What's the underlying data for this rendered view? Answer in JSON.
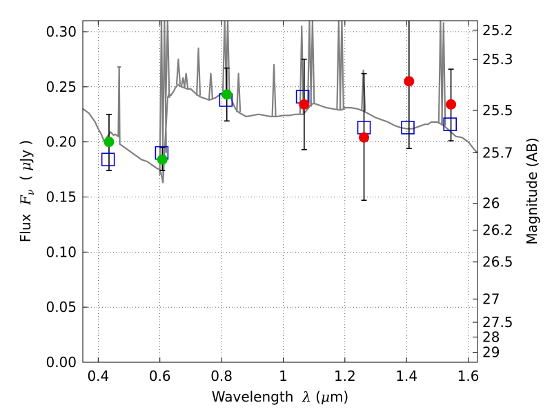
{
  "chart_data": {
    "type": "scatter",
    "xlabel": {
      "prefix": "Wavelength  ",
      "symbol": "λ",
      "unit_open": " (",
      "unit_mu": "μ",
      "unit_rest": "m)"
    },
    "ylabel": {
      "prefix": "Flux  ",
      "symbol": "F",
      "subscript": "ν",
      "unit_open": "  ( ",
      "unit_mu": "μ",
      "unit_rest": "Jy )"
    },
    "y2label": "Magnitude (AB)",
    "xlim": [
      0.35,
      1.63
    ],
    "ylim": [
      0.0,
      0.31
    ],
    "grid": true,
    "x_ticks": [
      0.4,
      0.6,
      0.8,
      1.0,
      1.2,
      1.4,
      1.6
    ],
    "x_tick_labels": [
      "0.4",
      "0.6",
      "0.8",
      "1",
      "1.2",
      "1.4",
      "1.6"
    ],
    "y_ticks": [
      0.0,
      0.05,
      0.1,
      0.15,
      0.2,
      0.25,
      0.3
    ],
    "y_tick_labels": [
      "0.00",
      "0.05",
      "0.10",
      "0.15",
      "0.20",
      "0.25",
      "0.30"
    ],
    "mag_ticks": [
      {
        "label": "25.2",
        "flux": 0.3013
      },
      {
        "label": "25.3",
        "flux": 0.2748
      },
      {
        "label": "25.5",
        "flux": 0.2286
      },
      {
        "label": "25.7",
        "flux": 0.1901
      },
      {
        "label": "26",
        "flux": 0.1442
      },
      {
        "label": "26.2",
        "flux": 0.1199
      },
      {
        "label": "26.5",
        "flux": 0.091
      },
      {
        "label": "27",
        "flux": 0.0574
      },
      {
        "label": "27.5",
        "flux": 0.0363
      },
      {
        "label": "28",
        "flux": 0.0229
      },
      {
        "label": "29",
        "flux": 0.0091
      }
    ],
    "colors": {
      "sed": "#808080",
      "model": "#0000cc",
      "green": "#00bb00",
      "red": "#ee0000",
      "errorbar": "#000000"
    },
    "sed": {
      "x": [
        0.35,
        0.36,
        0.37,
        0.38,
        0.39,
        0.4,
        0.41,
        0.42,
        0.43,
        0.44,
        0.45,
        0.455,
        0.465,
        0.468,
        0.47,
        0.48,
        0.49,
        0.5,
        0.51,
        0.52,
        0.53,
        0.54,
        0.55,
        0.56,
        0.57,
        0.58,
        0.59,
        0.6,
        0.605,
        0.61,
        0.615,
        0.62,
        0.625,
        0.63,
        0.635,
        0.64,
        0.645,
        0.65,
        0.655,
        0.66,
        0.67,
        0.68,
        0.69,
        0.7,
        0.72,
        0.73,
        0.74,
        0.75,
        0.76,
        0.78,
        0.8,
        0.81,
        0.815,
        0.82,
        0.83,
        0.84,
        0.85,
        0.86,
        0.88,
        0.9,
        0.92,
        0.94,
        0.96,
        0.98,
        1.0,
        1.02,
        1.04,
        1.06,
        1.065,
        1.08,
        1.09,
        1.1,
        1.12,
        1.14,
        1.16,
        1.18,
        1.19,
        1.2,
        1.22,
        1.24,
        1.26,
        1.28,
        1.3,
        1.32,
        1.34,
        1.36,
        1.38,
        1.4,
        1.42,
        1.44,
        1.46,
        1.47,
        1.48,
        1.5,
        1.52,
        1.54,
        1.56,
        1.58,
        1.6,
        1.62,
        1.63
      ],
      "y": [
        0.23,
        0.228,
        0.226,
        0.222,
        0.218,
        0.212,
        0.207,
        0.2,
        0.205,
        0.209,
        0.206,
        0.207,
        0.205,
        0.268,
        0.198,
        0.196,
        0.194,
        0.192,
        0.19,
        0.188,
        0.186,
        0.184,
        0.183,
        0.182,
        0.18,
        0.178,
        0.176,
        0.175,
        0.17,
        0.163,
        0.19,
        0.215,
        0.24,
        0.244,
        0.242,
        0.244,
        0.246,
        0.249,
        0.251,
        0.252,
        0.25,
        0.249,
        0.248,
        0.248,
        0.243,
        0.241,
        0.24,
        0.239,
        0.238,
        0.24,
        0.244,
        0.246,
        0.245,
        0.244,
        0.24,
        0.233,
        0.228,
        0.226,
        0.223,
        0.224,
        0.225,
        0.224,
        0.223,
        0.223,
        0.224,
        0.224,
        0.225,
        0.225,
        0.225,
        0.23,
        0.234,
        0.235,
        0.233,
        0.231,
        0.23,
        0.229,
        0.229,
        0.231,
        0.231,
        0.23,
        0.228,
        0.225,
        0.222,
        0.22,
        0.218,
        0.215,
        0.213,
        0.212,
        0.212,
        0.214,
        0.216,
        0.216,
        0.218,
        0.218,
        0.215,
        0.21,
        0.205,
        0.204,
        0.2,
        0.193,
        0.19
      ]
    },
    "emission_lines": [
      {
        "x": 0.468,
        "top": 0.268
      },
      {
        "x": 0.605,
        "top": 0.31
      },
      {
        "x": 0.615,
        "top": 0.31
      },
      {
        "x": 0.625,
        "top": 0.31
      },
      {
        "x": 0.66,
        "top": 0.275
      },
      {
        "x": 0.675,
        "top": 0.258
      },
      {
        "x": 0.685,
        "top": 0.262
      },
      {
        "x": 0.725,
        "top": 0.285
      },
      {
        "x": 0.765,
        "top": 0.262
      },
      {
        "x": 0.81,
        "top": 0.31
      },
      {
        "x": 0.82,
        "top": 0.31
      },
      {
        "x": 0.855,
        "top": 0.262
      },
      {
        "x": 0.97,
        "top": 0.27
      },
      {
        "x": 1.06,
        "top": 0.305
      },
      {
        "x": 1.085,
        "top": 0.31
      },
      {
        "x": 1.095,
        "top": 0.31
      },
      {
        "x": 1.18,
        "top": 0.31
      },
      {
        "x": 1.19,
        "top": 0.31
      },
      {
        "x": 1.26,
        "top": 0.265
      },
      {
        "x": 1.51,
        "top": 0.31
      },
      {
        "x": 1.52,
        "top": 0.308
      }
    ],
    "model_points": [
      {
        "x": 0.432,
        "y": 0.184
      },
      {
        "x": 0.606,
        "y": 0.19
      },
      {
        "x": 0.814,
        "y": 0.238
      },
      {
        "x": 1.063,
        "y": 0.241
      },
      {
        "x": 1.262,
        "y": 0.213
      },
      {
        "x": 1.404,
        "y": 0.213
      },
      {
        "x": 1.541,
        "y": 0.216
      }
    ],
    "observed_points": [
      {
        "x": 0.435,
        "y": 0.2,
        "low": 0.174,
        "high": 0.225,
        "color": "green"
      },
      {
        "x": 0.608,
        "y": 0.184,
        "low": 0.174,
        "high": 0.195,
        "color": "green"
      },
      {
        "x": 0.817,
        "y": 0.243,
        "low": 0.219,
        "high": 0.267,
        "color": "green"
      },
      {
        "x": 1.068,
        "y": 0.234,
        "low": 0.193,
        "high": 0.275,
        "color": "red"
      },
      {
        "x": 1.262,
        "y": 0.204,
        "low": 0.147,
        "high": 0.262,
        "color": "red"
      },
      {
        "x": 1.408,
        "y": 0.255,
        "low": 0.194,
        "high": 0.315,
        "color": "red"
      },
      {
        "x": 1.544,
        "y": 0.234,
        "low": 0.201,
        "high": 0.266,
        "color": "red"
      }
    ]
  }
}
